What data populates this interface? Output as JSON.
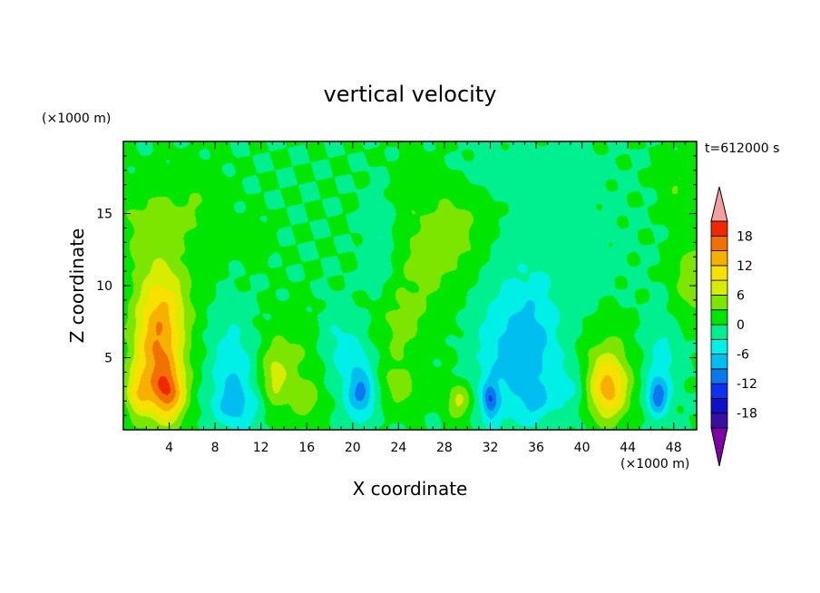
{
  "chart_data": {
    "type": "heatmap",
    "title": "vertical velocity",
    "xlabel": "X coordinate",
    "ylabel": "Z coordinate",
    "x_unit": "(×1000 m)",
    "y_unit": "(×1000 m)",
    "time_label": "t=612000 s",
    "x_ticks": [
      4,
      8,
      12,
      16,
      20,
      24,
      28,
      32,
      36,
      40,
      44,
      48
    ],
    "y_ticks": [
      5,
      10,
      15
    ],
    "xlim": [
      0,
      50
    ],
    "ylim": [
      0,
      20
    ],
    "colorbar": {
      "tick_labels": [
        18,
        12,
        6,
        0,
        -6,
        -12,
        -18
      ],
      "levels": [
        -21,
        -18,
        -15,
        -12,
        -9,
        -6,
        -3,
        0,
        3,
        6,
        9,
        12,
        15,
        18,
        21
      ],
      "colors": [
        "#8000a8",
        "#3a0fa0",
        "#1010c8",
        "#0c32f0",
        "#0c78f0",
        "#00bff0",
        "#00f0e8",
        "#00f090",
        "#00e600",
        "#7ce600",
        "#d8ec00",
        "#f8e000",
        "#f8b000",
        "#f07000",
        "#f02800",
        "#f4a0a0"
      ],
      "extend": "both"
    },
    "features": [
      {
        "x": 3.0,
        "z": 5.0,
        "w": 14,
        "sx": 2.2,
        "sz": 4.2
      },
      {
        "x": 3.6,
        "z": 9.0,
        "w": 6,
        "sx": 2.4,
        "sz": 3.0
      },
      {
        "x": 4.0,
        "z": 2.5,
        "w": 10,
        "sx": 1.4,
        "sz": 1.8
      },
      {
        "x": 2.0,
        "z": 14.0,
        "w": 4,
        "sx": 2.5,
        "sz": 3.0
      },
      {
        "x": 1.2,
        "z": 2.5,
        "w": 7,
        "sx": 1.0,
        "sz": 1.5
      },
      {
        "x": 6.0,
        "z": 15.0,
        "w": 3,
        "sx": 2.8,
        "sz": 3.0
      },
      {
        "x": 9.5,
        "z": 4.0,
        "w": -6,
        "sx": 1.8,
        "sz": 3.5
      },
      {
        "x": 10.0,
        "z": 1.5,
        "w": -4,
        "sx": 2.5,
        "sz": 1.5
      },
      {
        "x": 13.2,
        "z": 3.5,
        "w": 6,
        "sx": 1.2,
        "sz": 2.2
      },
      {
        "x": 15.0,
        "z": 5.0,
        "w": 3,
        "sx": 2.5,
        "sz": 3.0
      },
      {
        "x": 16.0,
        "z": 2.0,
        "w": 4,
        "sx": 1.4,
        "sz": 1.3
      },
      {
        "x": 11.5,
        "z": 13.0,
        "w": 3,
        "sx": 1.2,
        "sz": 1.3
      },
      {
        "x": 20.5,
        "z": 3.0,
        "w": -7,
        "sx": 1.4,
        "sz": 3.0
      },
      {
        "x": 21.0,
        "z": 2.5,
        "w": -4,
        "sx": 1.0,
        "sz": 1.0
      },
      {
        "x": 18.5,
        "z": 6.0,
        "w": -3.5,
        "sx": 1.5,
        "sz": 2.5
      },
      {
        "x": 24.0,
        "z": 3.0,
        "w": 4.5,
        "sx": 1.5,
        "sz": 1.6
      },
      {
        "x": 26.0,
        "z": 12.0,
        "w": 3.5,
        "sx": 3.5,
        "sz": 5.5
      },
      {
        "x": 29.5,
        "z": 13.5,
        "w": 3,
        "sx": 2.5,
        "sz": 3.0
      },
      {
        "x": 24.0,
        "z": 7.0,
        "w": 3,
        "sx": 2.0,
        "sz": 2.5
      },
      {
        "x": 22.5,
        "z": 13.0,
        "w": -3.5,
        "sx": 1.5,
        "sz": 3.5
      },
      {
        "x": 29.3,
        "z": 2.0,
        "w": 7,
        "sx": 1.1,
        "sz": 1.3
      },
      {
        "x": 33.5,
        "z": 5.0,
        "w": -6,
        "sx": 3.0,
        "sz": 5.0
      },
      {
        "x": 32.0,
        "z": 2.0,
        "w": -9,
        "sx": 0.7,
        "sz": 1.3
      },
      {
        "x": 36.0,
        "z": 6.0,
        "w": -4.5,
        "sx": 2.2,
        "sz": 4.0
      },
      {
        "x": 39.0,
        "z": 3.0,
        "w": -3.5,
        "sx": 1.5,
        "sz": 2.0
      },
      {
        "x": 36.0,
        "z": 2.0,
        "w": -4,
        "sx": 1.4,
        "sz": 1.3
      },
      {
        "x": 42.3,
        "z": 2.8,
        "w": 12,
        "sx": 1.7,
        "sz": 2.2
      },
      {
        "x": 42.0,
        "z": 5.0,
        "w": 3,
        "sx": 2.5,
        "sz": 3.0
      },
      {
        "x": 46.6,
        "z": 2.3,
        "w": -10,
        "sx": 0.9,
        "sz": 1.3
      },
      {
        "x": 47.0,
        "z": 5.0,
        "w": -4,
        "sx": 1.5,
        "sz": 3.0
      },
      {
        "x": 49.5,
        "z": 10.5,
        "w": 5,
        "sx": 1.5,
        "sz": 3.0
      },
      {
        "x": 48.5,
        "z": 17.0,
        "w": 3,
        "sx": 1.5,
        "sz": 2.0
      },
      {
        "x": 38.0,
        "z": 12.0,
        "w": -1.5,
        "sx": 5.0,
        "sz": 5.0
      },
      {
        "x": 34.0,
        "z": 18.0,
        "w": -1.5,
        "sx": 6.0,
        "sz": 1.5
      }
    ]
  }
}
